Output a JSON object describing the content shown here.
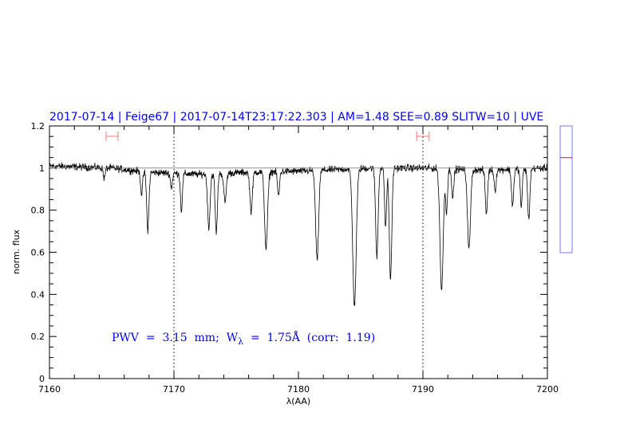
{
  "chart_data": {
    "type": "line",
    "title": "2017-07-14 | Feige67 | 2017-07-14T23:17:22.303 | AM=1.48  SEE=0.89  SLITW=10 | UVE",
    "xlabel": "λ(AA)",
    "ylabel": "norm. flux",
    "xlim": [
      7160,
      7200
    ],
    "ylim": [
      0,
      1.2
    ],
    "xticks": [
      7160,
      7170,
      7180,
      7190,
      7200
    ],
    "xtick_labels": [
      "7160",
      "7170",
      "7180",
      "7190",
      "7200"
    ],
    "yticks": [
      0,
      0.2,
      0.4,
      0.6,
      0.8,
      1,
      1.2
    ],
    "ytick_labels": [
      "0",
      "0.2",
      "0.4",
      "0.6",
      "0.8",
      "1",
      "1.2"
    ],
    "grid": false,
    "reference_line_y": 1.0,
    "vertical_markers": [
      7170,
      7190
    ],
    "annotation": {
      "pre": "PWV  =  3.15  mm;  W",
      "sub": "λ",
      "post": "  =  1.75Å  (corr:  1.19)"
    },
    "error_bars": [
      [
        7164.55,
        7165.5
      ],
      [
        7189.5,
        7190.5
      ]
    ],
    "side_indicator": {
      "range": [
        0.6,
        1.2
      ],
      "value": 1.05
    },
    "spectrum": {
      "continuum": [
        [
          7160,
          1.01
        ],
        [
          7165,
          1.0
        ],
        [
          7168,
          0.98
        ],
        [
          7172,
          0.97
        ],
        [
          7176,
          0.98
        ],
        [
          7180,
          0.985
        ],
        [
          7186,
          1.0
        ],
        [
          7190,
          1.0
        ],
        [
          7195,
          0.99
        ],
        [
          7200,
          1.0
        ]
      ],
      "noise": 0.012,
      "absorption_lines": [
        {
          "center": 7164.4,
          "min_flux": 0.95,
          "sigma": 0.08
        },
        {
          "center": 7167.4,
          "min_flux": 0.89,
          "sigma": 0.08
        },
        {
          "center": 7167.9,
          "min_flux": 0.72,
          "sigma": 0.09
        },
        {
          "center": 7169.8,
          "min_flux": 0.93,
          "sigma": 0.08
        },
        {
          "center": 7170.6,
          "min_flux": 0.82,
          "sigma": 0.08
        },
        {
          "center": 7172.8,
          "min_flux": 0.74,
          "sigma": 0.1
        },
        {
          "center": 7173.4,
          "min_flux": 0.71,
          "sigma": 0.09
        },
        {
          "center": 7174.1,
          "min_flux": 0.86,
          "sigma": 0.1
        },
        {
          "center": 7176.2,
          "min_flux": 0.81,
          "sigma": 0.1
        },
        {
          "center": 7177.4,
          "min_flux": 0.63,
          "sigma": 0.12
        },
        {
          "center": 7178.4,
          "min_flux": 0.88,
          "sigma": 0.08
        },
        {
          "center": 7181.5,
          "min_flux": 0.57,
          "sigma": 0.12
        },
        {
          "center": 7184.5,
          "min_flux": 0.35,
          "sigma": 0.14
        },
        {
          "center": 7186.3,
          "min_flux": 0.58,
          "sigma": 0.1
        },
        {
          "center": 7187.0,
          "min_flux": 0.72,
          "sigma": 0.08
        },
        {
          "center": 7187.4,
          "min_flux": 0.47,
          "sigma": 0.1
        },
        {
          "center": 7191.5,
          "min_flux": 0.42,
          "sigma": 0.13
        },
        {
          "center": 7191.9,
          "min_flux": 0.8,
          "sigma": 0.08
        },
        {
          "center": 7192.4,
          "min_flux": 0.86,
          "sigma": 0.08
        },
        {
          "center": 7193.7,
          "min_flux": 0.62,
          "sigma": 0.12
        },
        {
          "center": 7195.1,
          "min_flux": 0.79,
          "sigma": 0.09
        },
        {
          "center": 7195.8,
          "min_flux": 0.9,
          "sigma": 0.08
        },
        {
          "center": 7197.2,
          "min_flux": 0.83,
          "sigma": 0.09
        },
        {
          "center": 7197.9,
          "min_flux": 0.82,
          "sigma": 0.08
        },
        {
          "center": 7198.5,
          "min_flux": 0.76,
          "sigma": 0.09
        }
      ]
    },
    "colors": {
      "title": "#0000ff",
      "spectrum": "#000000",
      "reference": "#808080",
      "error_bar": "#ff7777",
      "side_box": "#7777ff",
      "side_marker": "#ff0000"
    }
  }
}
